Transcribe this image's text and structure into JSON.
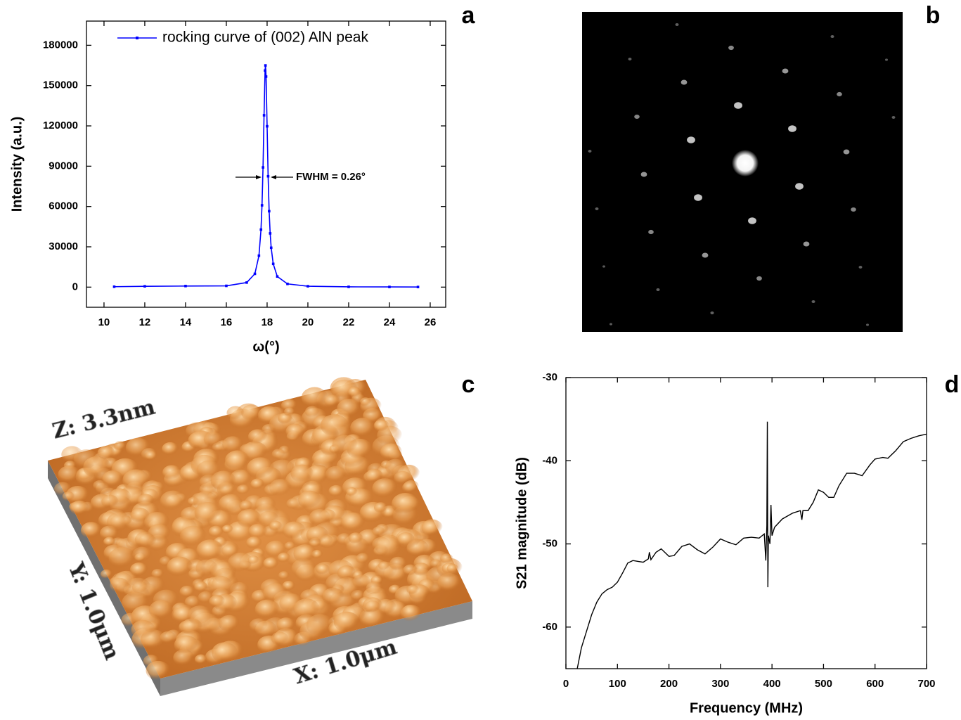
{
  "chart_data": [
    {
      "type": "line",
      "ylabel": "Intensity (a.u.)",
      "xlabel": "ω(°)",
      "x": [
        10.5,
        12,
        14,
        16,
        17,
        17.4,
        17.6,
        17.7,
        17.75,
        17.8,
        17.85,
        17.9,
        17.92,
        17.95,
        18.0,
        18.05,
        18.1,
        18.15,
        18.2,
        18.3,
        18.5,
        19,
        20,
        22,
        24,
        25.4
      ],
      "series": [
        {
          "name": "rocking curve of (002) AlN peak",
          "color": "#0000ff",
          "values": [
            300,
            600,
            800,
            950,
            3400,
            9900,
            23400,
            42800,
            60900,
            89100,
            127900,
            161200,
            165000,
            156700,
            119700,
            82500,
            56500,
            40000,
            29300,
            17300,
            7900,
            2400,
            650,
            200,
            120,
            80
          ]
        }
      ],
      "xlim": [
        9.14,
        26.76
      ],
      "xticks": [
        10,
        12,
        14,
        16,
        18,
        20,
        22,
        24,
        26
      ],
      "ylim": [
        -15000,
        198000
      ],
      "yticks": [
        0,
        30000,
        60000,
        90000,
        120000,
        150000,
        180000
      ],
      "annotations": [
        {
          "text": "FWHM = 0.26°"
        }
      ],
      "legend": "top"
    },
    {
      "type": "line",
      "ylabel": "S21 magnitude (dB)",
      "xlabel": "Frequency (MHz)",
      "x": [
        22,
        30,
        40,
        50,
        60,
        70,
        80,
        90,
        100,
        110,
        120,
        130,
        140,
        150,
        160,
        162,
        165,
        175,
        185,
        200,
        210,
        225,
        240,
        255,
        270,
        285,
        300,
        315,
        330,
        345,
        360,
        375,
        385,
        388,
        390,
        391,
        392,
        393,
        396,
        398,
        400,
        405,
        420,
        440,
        455,
        458,
        460,
        470,
        480,
        490,
        500,
        510,
        520,
        530,
        545,
        560,
        575,
        590,
        600,
        615,
        625,
        640,
        655,
        670,
        685,
        700
      ],
      "series": [
        {
          "color": "#000000",
          "values": [
            -65,
            -62.5,
            -60.5,
            -58.5,
            -57,
            -56,
            -55.5,
            -55.2,
            -54.6,
            -53.5,
            -52.3,
            -52,
            -52.1,
            -52.2,
            -51.8,
            -51,
            -51.9,
            -51,
            -50.6,
            -51.5,
            -51.4,
            -50.3,
            -50,
            -50.7,
            -51.2,
            -50.4,
            -49.4,
            -49.8,
            -50.1,
            -49.3,
            -49.2,
            -49.3,
            -48.8,
            -52,
            -47.8,
            -35.3,
            -55.2,
            -49,
            -50,
            -45.3,
            -49,
            -48,
            -47,
            -46.3,
            -46,
            -47.1,
            -46,
            -46,
            -45,
            -43.5,
            -43.8,
            -44.4,
            -44.4,
            -43,
            -41.5,
            -41.5,
            -41.8,
            -40.5,
            -39.8,
            -39.6,
            -39.7,
            -38.8,
            -37.7,
            -37.3,
            -37,
            -36.8
          ]
        }
      ],
      "xlim": [
        0,
        700
      ],
      "xticks": [
        0,
        100,
        200,
        300,
        400,
        500,
        600,
        700
      ],
      "ylim": [
        -65,
        -30
      ],
      "yticks": [
        -30,
        -40,
        -50,
        -60
      ]
    }
  ],
  "panel_labels": [
    "a",
    "b",
    "c",
    "d"
  ],
  "afm_image": {
    "z_scale": "Z: 3.3nm",
    "y_scale": "Y: 1.0μm",
    "x_scale": "X: 1.0μm"
  }
}
